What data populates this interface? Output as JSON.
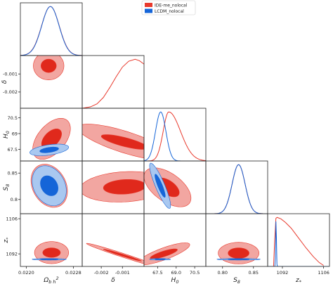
{
  "chart_data": {
    "type": "triangle-plot",
    "legend": {
      "placement": "top-center",
      "entries": [
        {
          "name": "IDE-me_nolocal",
          "color": "#e8392c"
        },
        {
          "name": "LCDM_nolocal",
          "color": "#1565d8"
        }
      ]
    },
    "parameters": [
      {
        "key": "obh2",
        "label": "Ω_b h^2",
        "range": [
          0.0219,
          0.02295
        ],
        "ticks": [
          "0.0220",
          "0.0228"
        ]
      },
      {
        "key": "delta",
        "label": "δ",
        "range": [
          -0.0029,
          2e-05
        ],
        "ticks": [
          "-0.002",
          "-0.001"
        ]
      },
      {
        "key": "H0",
        "label": "H_0",
        "range": [
          66.4,
          71.4
        ],
        "ticks": [
          "67.5",
          "69.0",
          "70.5"
        ]
      },
      {
        "key": "S8",
        "label": "S_8",
        "range": [
          0.773,
          0.873
        ],
        "ticks": [
          "0.80",
          "0.85"
        ]
      },
      {
        "key": "zstar",
        "label": "z_*",
        "range": [
          1087,
          1108
        ],
        "ticks": [
          "1092",
          "1106"
        ]
      }
    ],
    "y_ticks": {
      "delta": [
        "-0.001",
        "-0.002"
      ],
      "H0": [
        "70.5",
        "69",
        "67.5"
      ],
      "S8": [
        "0.85",
        "0.8"
      ],
      "zstar": [
        "1106",
        "1092"
      ]
    },
    "series": [
      {
        "name": "IDE-me_nolocal",
        "color_fill_outer": "#f2a6a1",
        "color_fill_inner": "#e0291c",
        "color_line": "#e8392c",
        "marginals": {
          "obh2": {
            "type": "gauss",
            "mean": 0.02241,
            "sd": 0.00015
          },
          "delta": {
            "type": "points",
            "x": [
              -0.0029,
              -0.0025,
              -0.0022,
              -0.0019,
              -0.0016,
              -0.0013,
              -0.001,
              -0.0007,
              -0.0004,
              -0.0002,
              2e-05
            ],
            "y": [
              0.0,
              0.03,
              0.09,
              0.22,
              0.42,
              0.64,
              0.84,
              0.96,
              1.0,
              0.97,
              0.9
            ]
          },
          "H0": {
            "type": "skew",
            "mode": 68.4,
            "sd_left": 0.45,
            "sd_right": 0.95
          },
          "S8": {
            "type": "gauss",
            "mean": 0.826,
            "sd": 0.0105
          },
          "zstar": {
            "type": "points",
            "x": [
              1089.0,
              1089.4,
              1089.8,
              1090.2,
              1091.5,
              1093.0,
              1095.0,
              1097.5,
              1100.0,
              1102.5,
              1104.5,
              1106.0
            ],
            "y": [
              0.0,
              0.55,
              0.98,
              1.0,
              0.97,
              0.9,
              0.78,
              0.58,
              0.38,
              0.2,
              0.08,
              0.02
            ]
          }
        },
        "contours": {
          "delta|obh2": {
            "center": [
              0.02238,
              -0.00055
            ],
            "outer": [
              0.00026,
              0.00078
            ],
            "inner": [
              0.00013,
              0.00037
            ],
            "corr": 0.0,
            "clip_top": -2e-05
          },
          "H0|obh2": {
            "center": [
              0.02243,
              68.5
            ],
            "outer": [
              0.00032,
              1.95
            ],
            "inner": [
              0.00017,
              0.95
            ],
            "corr": 0.5
          },
          "H0|delta": {
            "center": [
              -0.0009,
              68.2
            ],
            "outer": [
              0.0022,
              1.7
            ],
            "inner": [
              0.0011,
              0.7
            ],
            "corr": -0.78
          },
          "S8|obh2": {
            "center": [
              0.02239,
              0.826
            ],
            "outer": [
              0.00031,
              0.041
            ],
            "inner": [
              0.00016,
              0.021
            ],
            "corr": -0.25
          },
          "S8|delta": {
            "center": [
              -0.0009,
              0.824
            ],
            "outer": [
              0.0021,
              0.029
            ],
            "inner": [
              0.001,
              0.014
            ],
            "corr": 0.15
          },
          "S8|H0": {
            "center": [
              68.3,
              0.823
            ],
            "outer": [
              1.9,
              0.037
            ],
            "inner": [
              0.95,
              0.018
            ],
            "corr": -0.55
          },
          "zstar|obh2": {
            "center": [
              0.02243,
              1092.5
            ],
            "outer": [
              0.00029,
              4.4
            ],
            "inner": [
              0.00015,
              1.9
            ],
            "corr": 0.0
          },
          "zstar|delta": {
            "center": [
              -0.001,
              1091.5
            ],
            "outer": [
              0.0017,
              4.7
            ],
            "inner": [
              0.0009,
              2.4
            ],
            "corr": -0.985
          },
          "zstar|H0": {
            "center": [
              68.0,
              1092.0
            ],
            "outer": [
              2.1,
              4.4
            ],
            "inner": [
              1.1,
              2.0
            ],
            "corr": 0.82
          },
          "zstar|S8": {
            "center": [
              0.826,
              1092.3
            ],
            "outer": [
              0.033,
              4.3
            ],
            "inner": [
              0.017,
              2.1
            ],
            "corr": 0.0
          }
        }
      },
      {
        "name": "LCDM_nolocal",
        "color_fill_outer": "#a9c8f0",
        "color_fill_inner": "#1565d8",
        "color_line": "#1565d8",
        "marginals": {
          "obh2": {
            "type": "gauss",
            "mean": 0.02241,
            "sd": 0.000148
          },
          "H0": {
            "type": "gauss",
            "mean": 67.75,
            "sd": 0.42
          },
          "S8": {
            "type": "gauss",
            "mean": 0.826,
            "sd": 0.0105
          },
          "zstar": {
            "type": "gauss",
            "mean": 1089.85,
            "sd": 0.12
          }
        },
        "contours": {
          "H0|obh2": {
            "center": [
              0.02239,
              67.45
            ],
            "outer": [
              0.00033,
              0.55
            ],
            "inner": [
              0.00016,
              0.27
            ],
            "corr": 0.45
          },
          "S8|obh2": {
            "center": [
              0.02239,
              0.826
            ],
            "outer": [
              0.00029,
              0.038
            ],
            "inner": [
              0.00015,
              0.019
            ],
            "corr": -0.25
          },
          "S8|H0": {
            "center": [
              67.7,
              0.826
            ],
            "outer": [
              0.85,
              0.043
            ],
            "inner": [
              0.42,
              0.022
            ],
            "corr": -0.88
          },
          "zstar|obh2": {
            "center": [
              0.02239,
              1089.85
            ],
            "outer": [
              0.00029,
              0.3
            ],
            "inner": [
              0.00015,
              0.15
            ],
            "corr": 0.0
          },
          "zstar|H0": {
            "center": [
              67.7,
              1089.85
            ],
            "outer": [
              0.85,
              0.3
            ],
            "inner": [
              0.42,
              0.15
            ],
            "corr": 0.0
          },
          "zstar|S8": {
            "center": [
              0.826,
              1089.85
            ],
            "outer": [
              0.035,
              0.3
            ],
            "inner": [
              0.017,
              0.15
            ],
            "corr": 0.0
          }
        }
      }
    ]
  }
}
